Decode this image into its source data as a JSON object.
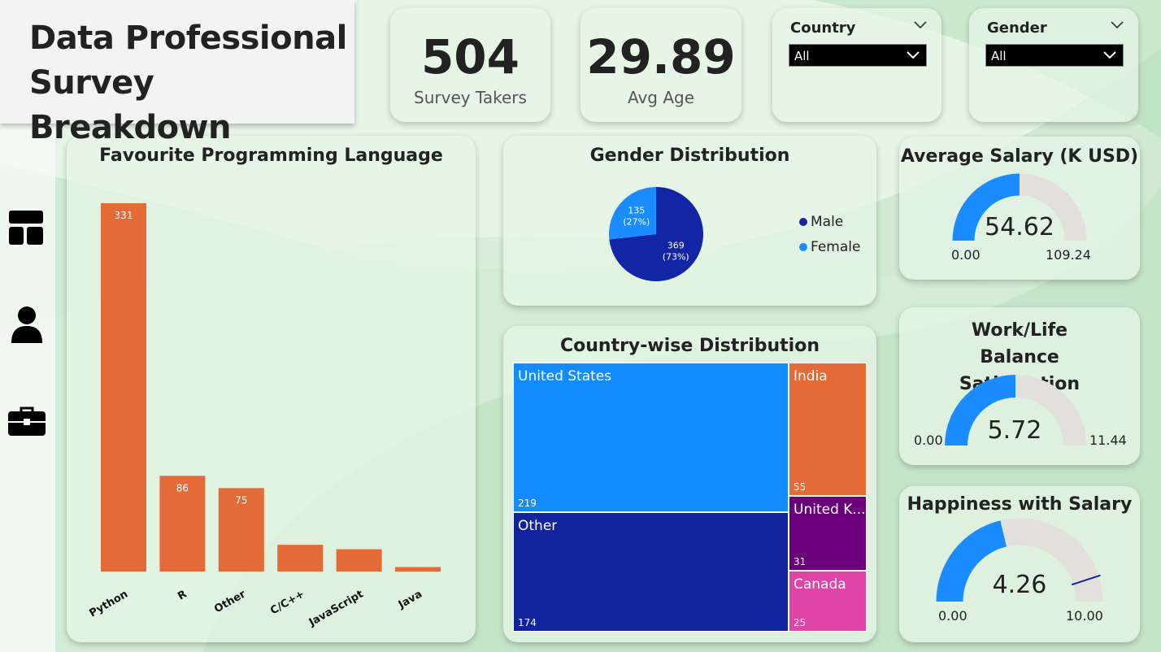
{
  "header": {
    "title": "Data Professional\nSurvey Breakdown"
  },
  "nav": {
    "items": [
      {
        "icon": "dashboard-icon"
      },
      {
        "icon": "user-icon"
      },
      {
        "icon": "briefcase-icon"
      }
    ]
  },
  "kpis": {
    "survey_takers": {
      "value": "504",
      "label": "Survey Takers"
    },
    "avg_age": {
      "value": "29.89",
      "label": "Avg Age"
    }
  },
  "filters": {
    "country": {
      "label": "Country",
      "selected": "All"
    },
    "gender": {
      "label": "Gender",
      "selected": "All"
    }
  },
  "colors": {
    "bar": "#e46b37",
    "male": "#1226a5",
    "female": "#1a8cff",
    "us": "#138cff",
    "other": "#12239e",
    "india": "#e46b37",
    "uk": "#6b007b",
    "canada": "#e044a7",
    "gauge_fill": "#1a8cff",
    "gauge_bg": "#e3e0dc",
    "target": "#12239e"
  },
  "languages": {
    "title": "Favourite Programming Language"
  },
  "gender_dist": {
    "title": "Gender Distribution"
  },
  "countries": {
    "title": "Country-wise Distribution",
    "cells": [
      {
        "name": "United States",
        "value": "219"
      },
      {
        "name": "Other",
        "value": "174"
      },
      {
        "name": "India",
        "value": "55"
      },
      {
        "name": "United K...",
        "value": "31"
      },
      {
        "name": "Canada",
        "value": "25"
      }
    ]
  },
  "salary": {
    "title": "Average Salary (K USD)",
    "value": "54.62",
    "min": "0.00",
    "max": "109.24",
    "fraction": 0.5
  },
  "worklife": {
    "title": "Work/Life Balance Satisfaction",
    "value": "5.72",
    "min": "0.00",
    "max": "11.44",
    "fraction": 0.5
  },
  "happiness": {
    "title": "Happiness with Salary",
    "value": "4.26",
    "min": "0.00",
    "max": "10.00",
    "fraction": 0.426,
    "target_fraction": 0.9
  },
  "chart_data": [
    {
      "type": "bar",
      "title": "Favourite Programming Language",
      "categories": [
        "Python",
        "R",
        "Other",
        "C/C++",
        "JavaScript",
        "Java"
      ],
      "values": [
        331,
        86,
        75,
        24,
        20,
        4
      ],
      "data_labels": [
        "331",
        "86",
        "75",
        "",
        "",
        ""
      ],
      "ylim": [
        0,
        331
      ],
      "grid": false
    },
    {
      "type": "pie",
      "title": "Gender Distribution",
      "categories": [
        "Male",
        "Female"
      ],
      "values": [
        369,
        135
      ],
      "data_labels": [
        "369\n(73%)",
        "135\n(27%)"
      ],
      "legend": "right"
    }
  ]
}
